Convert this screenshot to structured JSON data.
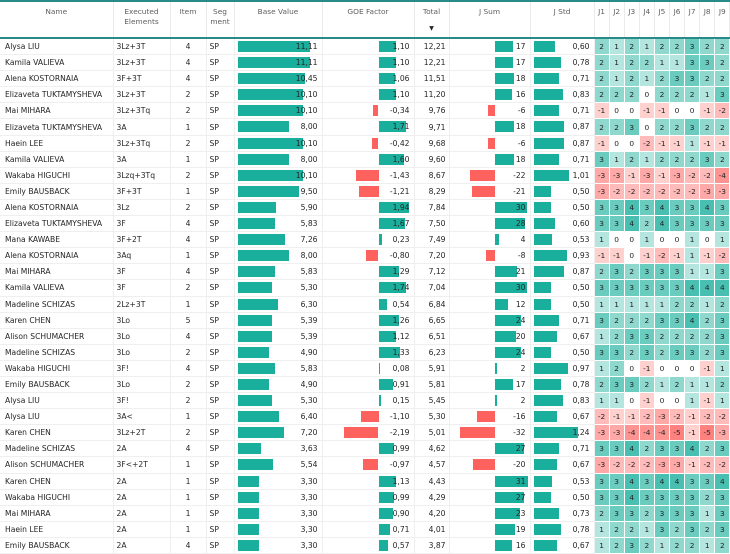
{
  "colors": {
    "positive_bar": "#1aaf9c",
    "negative_bar": "#fd625e",
    "header_rule": "#2a8a8a",
    "heat_pos": "#1aaf9c",
    "heat_neg": "#fd625e"
  },
  "header": {
    "name": "Name",
    "elements": "Executed Elements",
    "item": "Item",
    "segment": "Seg ment",
    "base": "Base Value",
    "goe": "GOE Factor",
    "total": "Total",
    "sort_indicator": "▼",
    "jsum": "J Sum",
    "jstd": "J Std",
    "judges": [
      "J1",
      "J2",
      "J3",
      "J4",
      "J5",
      "J6",
      "J7",
      "J8",
      "J9"
    ]
  },
  "rows": [
    {
      "name": "Alysa LIU",
      "elem": "3Lz+3T",
      "item": "4",
      "seg": "SP",
      "base": "11,11",
      "goe": "1,10",
      "total": "12,21",
      "jsum": "17",
      "jstd": "0,60",
      "j": [
        2,
        1,
        2,
        1,
        2,
        2,
        3,
        2,
        2
      ]
    },
    {
      "name": "Kamila VALIEVA",
      "elem": "3Lz+3T",
      "item": "4",
      "seg": "SP",
      "base": "11,11",
      "goe": "1,10",
      "total": "12,21",
      "jsum": "17",
      "jstd": "0,78",
      "j": [
        2,
        1,
        2,
        2,
        1,
        1,
        3,
        3,
        2
      ]
    },
    {
      "name": "Alena KOSTORNAIA",
      "elem": "3F+3T",
      "item": "4",
      "seg": "SP",
      "base": "10,45",
      "goe": "1,06",
      "total": "11,51",
      "jsum": "18",
      "jstd": "0,71",
      "j": [
        2,
        1,
        2,
        1,
        2,
        3,
        3,
        2,
        2
      ]
    },
    {
      "name": "Elizaveta TUKTAMYSHEVA",
      "elem": "3Lz+3T",
      "item": "2",
      "seg": "SP",
      "base": "10,10",
      "goe": "1,10",
      "total": "11,20",
      "jsum": "16",
      "jstd": "0,83",
      "j": [
        2,
        2,
        2,
        0,
        2,
        2,
        2,
        1,
        3
      ]
    },
    {
      "name": "Mai MIHARA",
      "elem": "3Lz+3Tq",
      "item": "2",
      "seg": "SP",
      "base": "10,10",
      "goe": "-0,34",
      "total": "9,76",
      "jsum": "-6",
      "jstd": "0,71",
      "j": [
        -1,
        0,
        0,
        -1,
        -1,
        0,
        0,
        -1,
        -2
      ]
    },
    {
      "name": "Elizaveta TUKTAMYSHEVA",
      "elem": "3A",
      "item": "1",
      "seg": "SP",
      "base": "8,00",
      "goe": "1,71",
      "total": "9,71",
      "jsum": "18",
      "jstd": "0,87",
      "j": [
        2,
        2,
        3,
        0,
        2,
        2,
        3,
        2,
        2
      ]
    },
    {
      "name": "Haein LEE",
      "elem": "3Lz+3Tq",
      "item": "2",
      "seg": "SP",
      "base": "10,10",
      "goe": "-0,42",
      "total": "9,68",
      "jsum": "-6",
      "jstd": "0,87",
      "j": [
        -1,
        0,
        0,
        -2,
        -1,
        -1,
        1,
        -1,
        -1
      ]
    },
    {
      "name": "Kamila VALIEVA",
      "elem": "3A",
      "item": "1",
      "seg": "SP",
      "base": "8,00",
      "goe": "1,60",
      "total": "9,60",
      "jsum": "18",
      "jstd": "0,71",
      "j": [
        3,
        1,
        2,
        1,
        2,
        2,
        2,
        3,
        2
      ]
    },
    {
      "name": "Wakaba HIGUCHI",
      "elem": "3Lzq+3Tq",
      "item": "2",
      "seg": "SP",
      "base": "10,10",
      "goe": "-1,43",
      "total": "8,67",
      "jsum": "-22",
      "jstd": "1,01",
      "j": [
        -3,
        -3,
        -1,
        -3,
        -1,
        -3,
        -2,
        -2,
        -4
      ]
    },
    {
      "name": "Emily BAUSBACK",
      "elem": "3F+3T",
      "item": "1",
      "seg": "SP",
      "base": "9,50",
      "goe": "-1,21",
      "total": "8,29",
      "jsum": "-21",
      "jstd": "0,50",
      "j": [
        -3,
        -2,
        -2,
        -2,
        -2,
        -2,
        -2,
        -3,
        -3
      ]
    },
    {
      "name": "Alena KOSTORNAIA",
      "elem": "3Lz",
      "item": "2",
      "seg": "SP",
      "base": "5,90",
      "goe": "1,94",
      "total": "7,84",
      "jsum": "30",
      "jstd": "0,50",
      "j": [
        3,
        3,
        4,
        3,
        4,
        3,
        3,
        4,
        3
      ]
    },
    {
      "name": "Elizaveta TUKTAMYSHEVA",
      "elem": "3F",
      "item": "4",
      "seg": "SP",
      "base": "5,83",
      "goe": "1,67",
      "total": "7,50",
      "jsum": "28",
      "jstd": "0,60",
      "j": [
        3,
        3,
        4,
        2,
        4,
        3,
        3,
        3,
        3
      ]
    },
    {
      "name": "Mana KAWABE",
      "elem": "3F+2T",
      "item": "4",
      "seg": "SP",
      "base": "7,26",
      "goe": "0,23",
      "total": "7,49",
      "jsum": "4",
      "jstd": "0,53",
      "j": [
        1,
        0,
        0,
        1,
        0,
        0,
        1,
        0,
        1
      ]
    },
    {
      "name": "Alena KOSTORNAIA",
      "elem": "3Aq",
      "item": "1",
      "seg": "SP",
      "base": "8,00",
      "goe": "-0,80",
      "total": "7,20",
      "jsum": "-8",
      "jstd": "0,93",
      "j": [
        -1,
        -1,
        0,
        -1,
        -2,
        -1,
        1,
        -1,
        -2
      ]
    },
    {
      "name": "Mai MIHARA",
      "elem": "3F",
      "item": "4",
      "seg": "SP",
      "base": "5,83",
      "goe": "1,29",
      "total": "7,12",
      "jsum": "21",
      "jstd": "0,87",
      "j": [
        2,
        3,
        2,
        3,
        3,
        3,
        1,
        1,
        3
      ]
    },
    {
      "name": "Kamila VALIEVA",
      "elem": "3F",
      "item": "2",
      "seg": "SP",
      "base": "5,30",
      "goe": "1,74",
      "total": "7,04",
      "jsum": "30",
      "jstd": "0,50",
      "j": [
        3,
        3,
        3,
        3,
        3,
        3,
        4,
        4,
        4
      ]
    },
    {
      "name": "Madeline SCHIZAS",
      "elem": "2Lz+3T",
      "item": "1",
      "seg": "SP",
      "base": "6,30",
      "goe": "0,54",
      "total": "6,84",
      "jsum": "12",
      "jstd": "0,50",
      "j": [
        1,
        1,
        1,
        1,
        1,
        2,
        2,
        1,
        2
      ]
    },
    {
      "name": "Karen CHEN",
      "elem": "3Lo",
      "item": "5",
      "seg": "SP",
      "base": "5,39",
      "goe": "1,26",
      "total": "6,65",
      "jsum": "24",
      "jstd": "0,71",
      "j": [
        3,
        2,
        2,
        2,
        3,
        3,
        4,
        2,
        3
      ]
    },
    {
      "name": "Alison SCHUMACHER",
      "elem": "3Lo",
      "item": "4",
      "seg": "SP",
      "base": "5,39",
      "goe": "1,12",
      "total": "6,51",
      "jsum": "20",
      "jstd": "0,67",
      "j": [
        1,
        2,
        3,
        3,
        2,
        2,
        2,
        2,
        3
      ]
    },
    {
      "name": "Madeline SCHIZAS",
      "elem": "3Lo",
      "item": "2",
      "seg": "SP",
      "base": "4,90",
      "goe": "1,33",
      "total": "6,23",
      "jsum": "24",
      "jstd": "0,50",
      "j": [
        3,
        3,
        2,
        3,
        2,
        3,
        3,
        2,
        3
      ]
    },
    {
      "name": "Wakaba HIGUCHI",
      "elem": "3F!",
      "item": "4",
      "seg": "SP",
      "base": "5,83",
      "goe": "0,08",
      "total": "5,91",
      "jsum": "2",
      "jstd": "0,97",
      "j": [
        1,
        2,
        0,
        -1,
        0,
        0,
        0,
        -1,
        1
      ]
    },
    {
      "name": "Emily BAUSBACK",
      "elem": "3Lo",
      "item": "2",
      "seg": "SP",
      "base": "4,90",
      "goe": "0,91",
      "total": "5,81",
      "jsum": "17",
      "jstd": "0,78",
      "j": [
        2,
        3,
        3,
        2,
        1,
        2,
        1,
        1,
        2
      ]
    },
    {
      "name": "Alysa LIU",
      "elem": "3F!",
      "item": "2",
      "seg": "SP",
      "base": "5,30",
      "goe": "0,15",
      "total": "5,45",
      "jsum": "2",
      "jstd": "0,83",
      "j": [
        1,
        1,
        0,
        -1,
        0,
        0,
        1,
        -1,
        1
      ]
    },
    {
      "name": "Alysa LIU",
      "elem": "3A<",
      "item": "1",
      "seg": "SP",
      "base": "6,40",
      "goe": "-1,10",
      "total": "5,30",
      "jsum": "-16",
      "jstd": "0,67",
      "j": [
        -2,
        -1,
        -1,
        -2,
        -3,
        -2,
        -1,
        -2,
        -2
      ]
    },
    {
      "name": "Karen CHEN",
      "elem": "3Lz+2T",
      "item": "2",
      "seg": "SP",
      "base": "7,20",
      "goe": "-2,19",
      "total": "5,01",
      "jsum": "-32",
      "jstd": "1,24",
      "j": [
        -3,
        -3,
        -4,
        -4,
        -4,
        -5,
        -1,
        -5,
        -3
      ]
    },
    {
      "name": "Madeline SCHIZAS",
      "elem": "2A",
      "item": "4",
      "seg": "SP",
      "base": "3,63",
      "goe": "0,99",
      "total": "4,62",
      "jsum": "27",
      "jstd": "0,71",
      "j": [
        3,
        3,
        4,
        2,
        3,
        3,
        4,
        2,
        3
      ]
    },
    {
      "name": "Alison SCHUMACHER",
      "elem": "3F<+2T",
      "item": "1",
      "seg": "SP",
      "base": "5,54",
      "goe": "-0,97",
      "total": "4,57",
      "jsum": "-20",
      "jstd": "0,67",
      "j": [
        -3,
        -2,
        -2,
        -2,
        -3,
        -3,
        -1,
        -2,
        -2
      ]
    },
    {
      "name": "Karen CHEN",
      "elem": "2A",
      "item": "1",
      "seg": "SP",
      "base": "3,30",
      "goe": "1,13",
      "total": "4,43",
      "jsum": "31",
      "jstd": "0,53",
      "j": [
        3,
        3,
        4,
        3,
        4,
        4,
        3,
        3,
        4
      ]
    },
    {
      "name": "Wakaba HIGUCHI",
      "elem": "2A",
      "item": "1",
      "seg": "SP",
      "base": "3,30",
      "goe": "0,99",
      "total": "4,29",
      "jsum": "27",
      "jstd": "0,50",
      "j": [
        3,
        3,
        4,
        3,
        3,
        3,
        3,
        2,
        3
      ]
    },
    {
      "name": "Mai MIHARA",
      "elem": "2A",
      "item": "1",
      "seg": "SP",
      "base": "3,30",
      "goe": "0,90",
      "total": "4,20",
      "jsum": "23",
      "jstd": "0,73",
      "j": [
        2,
        3,
        3,
        2,
        3,
        3,
        3,
        1,
        3
      ]
    },
    {
      "name": "Haein LEE",
      "elem": "2A",
      "item": "1",
      "seg": "SP",
      "base": "3,30",
      "goe": "0,71",
      "total": "4,01",
      "jsum": "19",
      "jstd": "0,78",
      "j": [
        1,
        2,
        2,
        1,
        3,
        2,
        3,
        2,
        3
      ]
    },
    {
      "name": "Emily BAUSBACK",
      "elem": "2A",
      "item": "4",
      "seg": "SP",
      "base": "3,30",
      "goe": "0,57",
      "total": "3,87",
      "jsum": "16",
      "jstd": "0,67",
      "j": [
        1,
        2,
        3,
        2,
        1,
        2,
        2,
        1,
        2
      ]
    }
  ]
}
